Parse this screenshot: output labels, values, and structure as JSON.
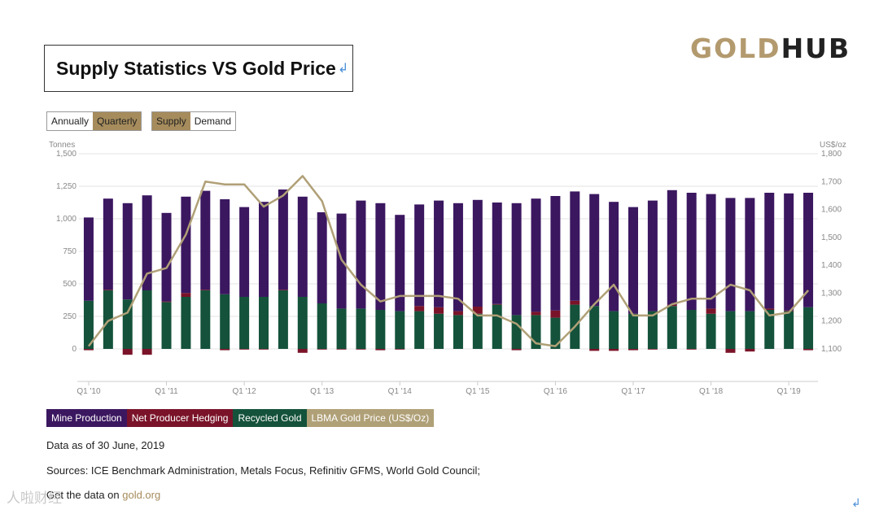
{
  "header": {
    "title": "Supply Statistics VS Gold Price",
    "title_mark": "↲",
    "logo_gold": "GOLD",
    "logo_hub": "HUB"
  },
  "toggles": {
    "period": [
      {
        "label": "Annually",
        "active": false
      },
      {
        "label": "Quarterly",
        "active": true
      }
    ],
    "view": [
      {
        "label": "Supply",
        "active": true
      },
      {
        "label": "Demand",
        "active": false
      }
    ]
  },
  "chart_data": {
    "type": "bar",
    "left_axis_label": "Tonnes",
    "right_axis_label": "US$/oz",
    "left_ylim": [
      0,
      1500
    ],
    "right_ylim": [
      1100,
      1800
    ],
    "left_ticks": [
      "0",
      "250",
      "500",
      "750",
      "1,000",
      "1,250",
      "1,500"
    ],
    "right_ticks": [
      "1,100",
      "1,200",
      "1,300",
      "1,400",
      "1,500",
      "1,600",
      "1,700",
      "1,800"
    ],
    "x_tick_labels": [
      "Q1 '10",
      "Q1 '11",
      "Q1 '12",
      "Q1 '13",
      "Q1 '14",
      "Q1 '15",
      "Q1 '16",
      "Q1 '17",
      "Q1 '18",
      "Q1 '19"
    ],
    "categories": [
      "Q1 '10",
      "Q2 '10",
      "Q3 '10",
      "Q4 '10",
      "Q1 '11",
      "Q2 '11",
      "Q3 '11",
      "Q4 '11",
      "Q1 '12",
      "Q2 '12",
      "Q3 '12",
      "Q4 '12",
      "Q1 '13",
      "Q2 '13",
      "Q3 '13",
      "Q4 '13",
      "Q1 '14",
      "Q2 '14",
      "Q3 '14",
      "Q4 '14",
      "Q1 '15",
      "Q2 '15",
      "Q3 '15",
      "Q4 '15",
      "Q1 '16",
      "Q2 '16",
      "Q3 '16",
      "Q4 '16",
      "Q1 '17",
      "Q2 '17",
      "Q3 '17",
      "Q4 '17",
      "Q1 '18",
      "Q2 '18",
      "Q3 '18",
      "Q4 '18",
      "Q1 '19",
      "Q2 '19"
    ],
    "series": [
      {
        "name": "Mine Production",
        "color": "#3b1760",
        "values": [
          640,
          700,
          740,
          730,
          680,
          740,
          760,
          730,
          690,
          730,
          770,
          770,
          700,
          730,
          830,
          820,
          740,
          780,
          820,
          830,
          820,
          780,
          860,
          870,
          880,
          840,
          860,
          840,
          820,
          850,
          880,
          900,
          880,
          870,
          870,
          890,
          900,
          880
        ]
      },
      {
        "name": "Net Producer Hedging",
        "color": "#7a1329",
        "values": [
          -10,
          5,
          -45,
          -45,
          5,
          30,
          5,
          -10,
          -5,
          -5,
          5,
          -30,
          -5,
          -5,
          -5,
          -10,
          -5,
          40,
          50,
          30,
          55,
          5,
          -10,
          25,
          55,
          30,
          -15,
          -15,
          -10,
          -5,
          10,
          -5,
          40,
          -30,
          -20,
          10,
          5,
          -10
        ]
      },
      {
        "name": "Recycled Gold",
        "color": "#14523b",
        "values": [
          370,
          450,
          380,
          450,
          360,
          400,
          450,
          420,
          400,
          400,
          450,
          400,
          350,
          310,
          310,
          300,
          290,
          290,
          270,
          260,
          270,
          340,
          260,
          260,
          240,
          340,
          330,
          290,
          270,
          290,
          330,
          300,
          270,
          290,
          290,
          300,
          290,
          320
        ]
      }
    ],
    "line_series": {
      "name": "LBMA Gold Price (US$/Oz)",
      "color": "#b0a077",
      "values": [
        1110,
        1200,
        1230,
        1370,
        1390,
        1510,
        1700,
        1690,
        1690,
        1610,
        1650,
        1720,
        1630,
        1420,
        1330,
        1270,
        1290,
        1290,
        1290,
        1280,
        1220,
        1220,
        1190,
        1120,
        1110,
        1180,
        1260,
        1330,
        1220,
        1220,
        1260,
        1280,
        1280,
        1330,
        1310,
        1220,
        1230,
        1310
      ]
    }
  },
  "legend": [
    {
      "label": "Mine Production",
      "color": "#3b1760"
    },
    {
      "label": "Net Producer Hedging",
      "color": "#7a1329"
    },
    {
      "label": "Recycled Gold",
      "color": "#14523b"
    },
    {
      "label": "LBMA Gold Price (US$/Oz)",
      "color": "#b0a077"
    }
  ],
  "notes": {
    "data_as_of": "Data as of 30 June, 2019",
    "sources": "Sources: ICE Benchmark Administration, Metals Focus, Refinitiv GFMS, World Gold Council;",
    "disclaimer_prefix": "Get the data on ",
    "disclaimer_link": "gold.org"
  },
  "watermark": "人啦财经",
  "corner_mark": "↲"
}
